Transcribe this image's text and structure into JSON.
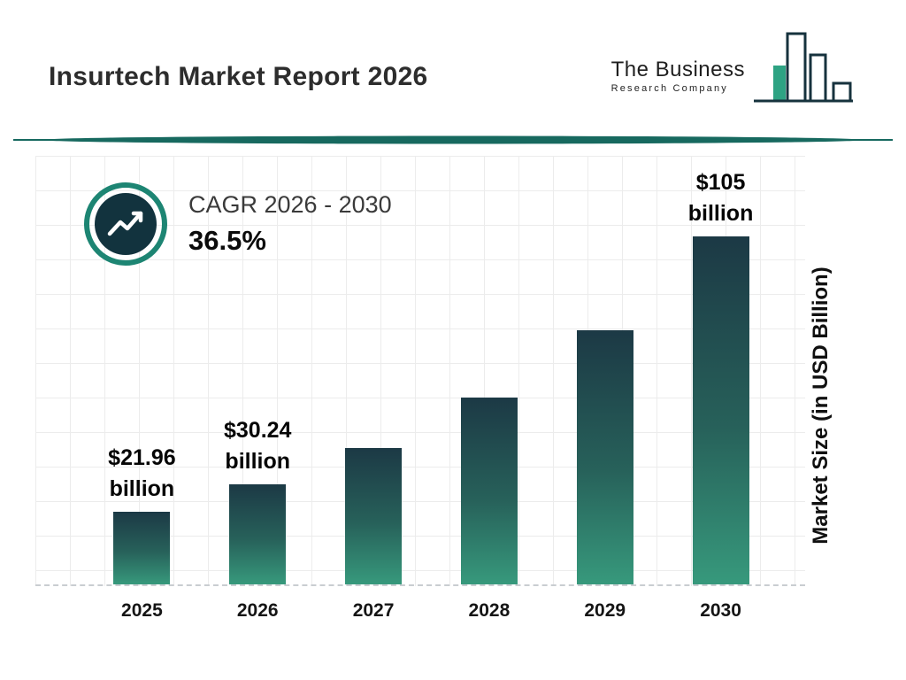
{
  "header": {
    "title": "Insurtech Market Report 2026",
    "logo": {
      "line1": "The Business",
      "line2": "Research Company",
      "icon": "bar-chart-icon"
    }
  },
  "cagr": {
    "label": "CAGR 2026 - 2030",
    "value": "36.5%",
    "icon": "trending-up-icon"
  },
  "chart_data": {
    "type": "bar",
    "title": "Insurtech Market Report 2026",
    "categories": [
      "2025",
      "2026",
      "2027",
      "2028",
      "2029",
      "2030"
    ],
    "values": [
      21.96,
      30.24,
      41.3,
      56.4,
      76.9,
      105
    ],
    "bar_labels": [
      "$21.96 billion",
      "$30.24 billion",
      "",
      "",
      "",
      "$105 billion"
    ],
    "xlabel": "",
    "ylabel": "Market Size (in USD Billion)",
    "ylim": [
      0,
      130
    ],
    "grid": true,
    "legend": "none",
    "colors": {
      "bar_gradient_top": "#1c3945",
      "bar_gradient_bottom": "#37997c",
      "accent_teal": "#17695f",
      "ring_teal": "#1d8573",
      "dark_navy": "#12333e"
    }
  }
}
